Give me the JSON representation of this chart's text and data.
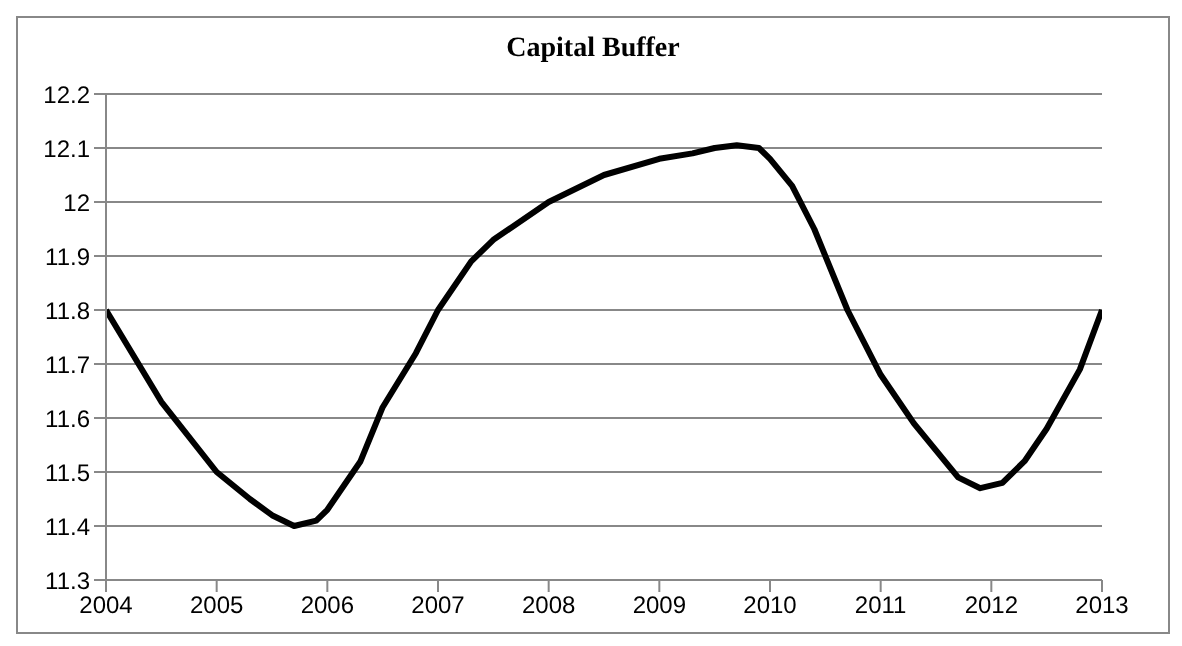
{
  "chart_data": {
    "type": "line",
    "title": "Capital Buffer",
    "x": [
      2004,
      2004.5,
      2005,
      2005.3,
      2005.5,
      2005.7,
      2005.9,
      2006,
      2006.3,
      2006.5,
      2006.8,
      2007,
      2007.3,
      2007.5,
      2008,
      2008.5,
      2009,
      2009.3,
      2009.5,
      2009.7,
      2009.9,
      2010,
      2010.2,
      2010.4,
      2010.7,
      2011,
      2011.3,
      2011.5,
      2011.7,
      2011.9,
      2012.1,
      2012.3,
      2012.5,
      2012.8,
      2013
    ],
    "series": [
      {
        "color": "#000000",
        "values": [
          11.8,
          11.63,
          11.5,
          11.45,
          11.42,
          11.4,
          11.41,
          11.43,
          11.52,
          11.62,
          11.72,
          11.8,
          11.89,
          11.93,
          12.0,
          12.05,
          12.08,
          12.09,
          12.1,
          12.105,
          12.1,
          12.08,
          12.03,
          11.95,
          11.8,
          11.68,
          11.59,
          11.54,
          11.49,
          11.47,
          11.48,
          11.52,
          11.58,
          11.69,
          11.8
        ]
      }
    ],
    "xlim": [
      2004,
      2013
    ],
    "xticks": [
      2004,
      2005,
      2006,
      2007,
      2008,
      2009,
      2010,
      2011,
      2012,
      2013
    ],
    "ylim": [
      11.3,
      12.2
    ],
    "yticks": [
      11.3,
      11.4,
      11.5,
      11.6,
      11.7,
      11.8,
      11.9,
      12,
      12.1,
      12.2
    ],
    "grid": "y",
    "marker": "none",
    "line_style": "solid"
  }
}
